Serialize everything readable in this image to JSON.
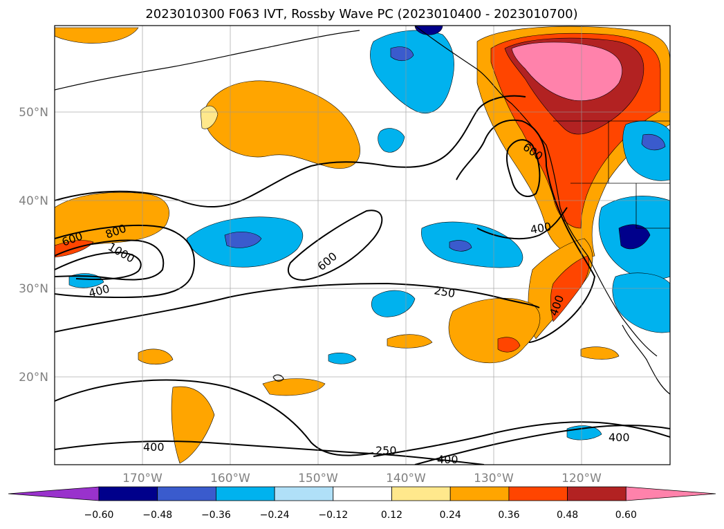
{
  "figure": {
    "title": "2023010300 F063 IVT, Rossby Wave PC (2023010400 - 2023010700)"
  },
  "map": {
    "lat_labels": [
      "50°N",
      "40°N",
      "30°N",
      "20°N"
    ],
    "lon_labels": [
      "170°W",
      "160°W",
      "150°W",
      "140°W",
      "130°W",
      "120°W"
    ],
    "contour_labels": [
      "600",
      "800",
      "1000",
      "400",
      "600",
      "250",
      "400",
      "600",
      "400",
      "400",
      "250",
      "400",
      "400"
    ]
  },
  "colorbar": {
    "ticks": [
      "−0.60",
      "−0.48",
      "−0.36",
      "−0.24",
      "−0.12",
      "0.12",
      "0.24",
      "0.36",
      "0.48",
      "0.60"
    ],
    "colors": [
      "#9932cc",
      "#00008b",
      "#3a5bcd",
      "#00b2ee",
      "#b0e0f8",
      "#ffffff",
      "#ffe88c",
      "#ffa500",
      "#ff4500",
      "#b22222",
      "#ff82ab"
    ]
  }
}
